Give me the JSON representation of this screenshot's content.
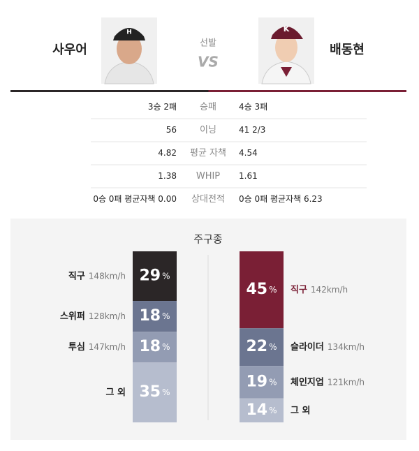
{
  "header": {
    "left_name": "사우어",
    "right_name": "배동현",
    "center_label": "선발",
    "vs": "VS"
  },
  "stats": {
    "rows": [
      {
        "label": "승패",
        "left": "3승 2패",
        "right": "4승 3패"
      },
      {
        "label": "이닝",
        "left": "56",
        "right": "41 2/3"
      },
      {
        "label": "평균 자책",
        "left": "4.82",
        "right": "4.54"
      },
      {
        "label": "WHIP",
        "left": "1.38",
        "right": "1.61"
      },
      {
        "label": "상대전적",
        "left": "0승 0패 평균자책 0.00",
        "right": "0승 0패 평균자책 6.23"
      }
    ]
  },
  "pitch_mix": {
    "title": "주구종",
    "unit": "%",
    "left": [
      {
        "name": "직구",
        "speed": "148km/h",
        "value": 29,
        "color": "#2b2627"
      },
      {
        "name": "스위퍼",
        "speed": "128km/h",
        "value": 18,
        "color": "#6b7590"
      },
      {
        "name": "투심",
        "speed": "147km/h",
        "value": 18,
        "color": "#939cb3"
      },
      {
        "name": "그 외",
        "value": 35,
        "color": "#b6bdce"
      }
    ],
    "right": [
      {
        "name": "직구",
        "speed": "142km/h",
        "value": 45,
        "color": "#7a1f35"
      },
      {
        "name": "슬라이더",
        "speed": "134km/h",
        "value": 22,
        "color": "#6b7590"
      },
      {
        "name": "체인지업",
        "speed": "121km/h",
        "value": 19,
        "color": "#939cb3"
      },
      {
        "name": "그 외",
        "value": 14,
        "color": "#b6bdce"
      }
    ]
  }
}
